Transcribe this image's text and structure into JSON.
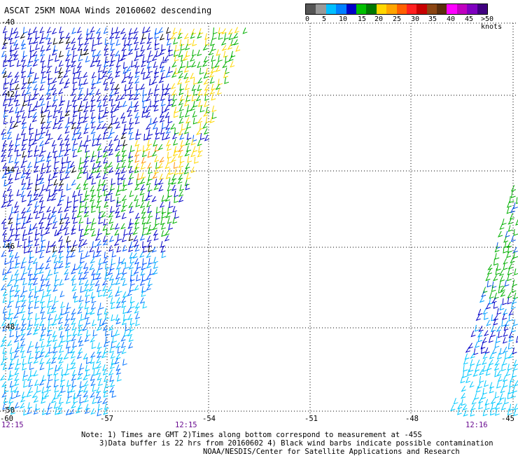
{
  "header": {
    "title": "ASCAT 25KM NOAA Winds 20160602 descending"
  },
  "legend": {
    "colors": [
      "#555555",
      "#999999",
      "#00bfff",
      "#0080ff",
      "#0000c8",
      "#00c000",
      "#007800",
      "#ffd700",
      "#ffa500",
      "#ff6000",
      "#ff2020",
      "#c80000",
      "#8b4513",
      "#5a2d0c",
      "#ff00ff",
      "#c000c0",
      "#8000c0",
      "#400080"
    ],
    "ticks": [
      "0",
      "5",
      "10",
      "15",
      "20",
      "25",
      "30",
      "35",
      "40",
      "45",
      ">50 knots"
    ]
  },
  "map": {
    "lat_labels": [
      "-40",
      "-42",
      "-44",
      "-46",
      "-48",
      "-50"
    ],
    "lon_labels": [
      "-60",
      "-57",
      "-54",
      "-51",
      "-48",
      "-45"
    ],
    "times": [
      "12:15",
      "12:15",
      "12:16"
    ]
  },
  "notes": {
    "line1": "Note: 1) Times are GMT 2)Times along bottom correspond to measurement at -45S",
    "line2": "3)Data buffer is 22 hrs from 20160602 4) Black wind barbs indicate possible contamination",
    "line3": "NOAA/NESDIS/Center for Satellite Applications and Research"
  }
}
